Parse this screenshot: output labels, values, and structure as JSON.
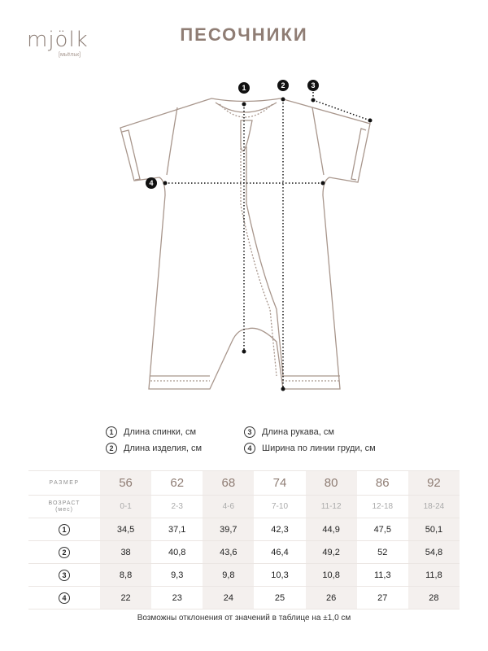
{
  "brand": {
    "logo": "mjölk",
    "logo_sub": "[мьёльк]"
  },
  "title": "ПЕСОЧНИКИ",
  "markers": [
    "1",
    "2",
    "3",
    "4"
  ],
  "legend": [
    {
      "num": "1",
      "label": "Длина спинки, см"
    },
    {
      "num": "2",
      "label": "Длина изделия, см"
    },
    {
      "num": "3",
      "label": "Длина рукава, см"
    },
    {
      "num": "4",
      "label": "Ширина по линии груди, см"
    }
  ],
  "table": {
    "size_label": "РАЗМЕР",
    "age_label": "ВОЗРАСТ",
    "age_unit": "(мес)",
    "sizes": [
      "56",
      "62",
      "68",
      "74",
      "80",
      "86",
      "92"
    ],
    "ages": [
      "0-1",
      "2-3",
      "4-6",
      "7-10",
      "11-12",
      "12-18",
      "18-24"
    ],
    "rows": [
      {
        "num": "1",
        "values": [
          "34,5",
          "37,1",
          "39,7",
          "42,3",
          "44,9",
          "47,5",
          "50,1"
        ]
      },
      {
        "num": "2",
        "values": [
          "38",
          "40,8",
          "43,6",
          "46,4",
          "49,2",
          "52",
          "54,8"
        ]
      },
      {
        "num": "3",
        "values": [
          "8,8",
          "9,3",
          "9,8",
          "10,3",
          "10,8",
          "11,3",
          "11,8"
        ]
      },
      {
        "num": "4",
        "values": [
          "22",
          "23",
          "24",
          "25",
          "26",
          "27",
          "28"
        ]
      }
    ]
  },
  "note": "Возможны отклонения от значений в таблице на ±1,0 см",
  "colors": {
    "accent": "#8f7d74",
    "shade": "#f4f0ee"
  }
}
